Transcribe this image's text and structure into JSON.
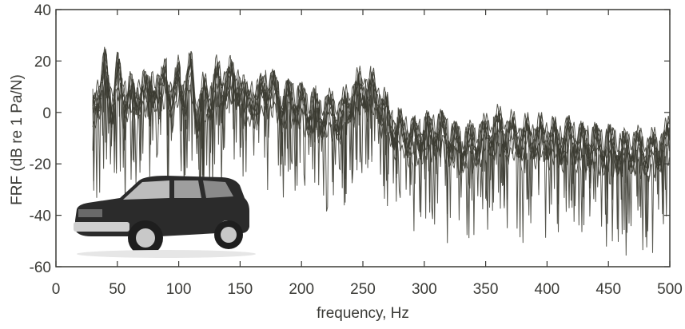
{
  "chart_data": {
    "type": "line",
    "title": "",
    "xlabel": "frequency, Hz",
    "ylabel": "FRF (dB re 1 Pa/N)",
    "xlim": [
      0,
      500
    ],
    "ylim": [
      -60,
      40
    ],
    "x_ticks": [
      0,
      50,
      100,
      150,
      200,
      250,
      300,
      350,
      400,
      450,
      500
    ],
    "y_ticks": [
      -60,
      -40,
      -20,
      0,
      20,
      40
    ],
    "grid": false,
    "legend": "none",
    "line_color": "#3a3a30",
    "inset_image": "suv-vehicle",
    "series": [
      {
        "x": [
          30,
          35,
          40,
          45,
          50,
          55,
          60,
          65,
          70,
          75,
          80,
          85,
          90,
          95,
          100,
          105,
          110,
          115,
          120,
          125,
          130,
          135,
          140,
          145,
          150,
          155,
          160,
          165,
          170,
          175,
          180,
          185,
          190,
          195,
          200,
          205,
          210,
          215,
          220,
          225,
          230,
          235,
          240,
          245,
          250,
          255,
          260,
          265,
          270,
          275,
          280,
          285,
          290,
          295,
          300,
          305,
          310,
          315,
          320,
          325,
          330,
          335,
          340,
          345,
          350,
          355,
          360,
          365,
          370,
          375,
          380,
          385,
          390,
          395,
          400,
          405,
          410,
          415,
          420,
          425,
          430,
          435,
          440,
          445,
          450,
          455,
          460,
          465,
          470,
          475,
          480,
          485,
          490,
          495,
          500
        ],
        "values": [
          4,
          12,
          21,
          6,
          20,
          8,
          14,
          4,
          16,
          9,
          15,
          10,
          19,
          6,
          18,
          10,
          20,
          2,
          10,
          8,
          17,
          12,
          18,
          14,
          15,
          6,
          10,
          8,
          14,
          12,
          11,
          6,
          9,
          8,
          7,
          4,
          6,
          2,
          4,
          3,
          2,
          4,
          8,
          11,
          13,
          12,
          11,
          6,
          2,
          -2,
          -4,
          -4,
          -7,
          -6,
          -4,
          -5,
          -3,
          -4,
          -6,
          -8,
          -10,
          -8,
          -9,
          -7,
          -6,
          -4,
          -3,
          -4,
          -5,
          -6,
          -7,
          -6,
          -6,
          -6,
          -6,
          -7,
          -8,
          -7,
          -6,
          -8,
          -9,
          -8,
          -9,
          -10,
          -9,
          -10,
          -11,
          -12,
          -10,
          -11,
          -12,
          -12,
          -11,
          -9,
          -7
        ]
      }
    ]
  }
}
